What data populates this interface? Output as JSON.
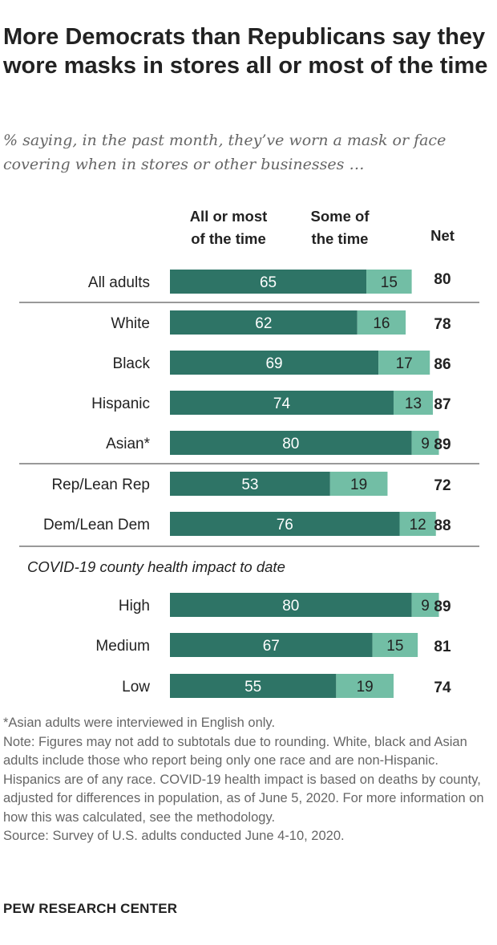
{
  "title": "More Democrats than Republicans say they wore masks in stores all or most of the time",
  "subtitle": "% saying, in the past month, they’ve worn a mask or face covering when in stores or other businesses …",
  "colors": {
    "dark": "#2e7466",
    "light": "#72bea5",
    "rule": "#999999"
  },
  "chart_data": {
    "type": "bar",
    "orientation": "horizontal",
    "stacked": true,
    "series": [
      {
        "name": "All or most of the time",
        "label_lines": [
          "All or most",
          "of the time"
        ]
      },
      {
        "name": "Some of the time",
        "label_lines": [
          "Some of",
          "the time"
        ]
      }
    ],
    "net_header": "Net",
    "section_heading": "COVID-19 county health impact to date",
    "categories": [
      "All adults",
      "White",
      "Black",
      "Hispanic",
      "Asian*",
      "Rep/Lean Rep",
      "Dem/Lean Dem",
      "High",
      "Medium",
      "Low"
    ],
    "all_or_most": [
      65,
      62,
      69,
      74,
      80,
      53,
      76,
      80,
      67,
      55
    ],
    "some": [
      15,
      16,
      17,
      13,
      9,
      19,
      12,
      9,
      15,
      19
    ],
    "net": [
      80,
      78,
      86,
      87,
      89,
      72,
      88,
      89,
      81,
      74
    ],
    "xlim": [
      0,
      100
    ]
  },
  "notes": {
    "asterisk": "*Asian adults were interviewed in English only.",
    "note": "Note: Figures may not add to subtotals due to rounding. White, black and Asian adults include those who report being only one race and are non-Hispanic. Hispanics are of any race. COVID-19 health impact is based on deaths by county, adjusted for differences in population, as of June 5, 2020. For more information on how this was calculated, see the methodology.",
    "source": "Source: Survey of U.S. adults conducted June 4-10, 2020."
  },
  "logo": "PEW RESEARCH CENTER"
}
